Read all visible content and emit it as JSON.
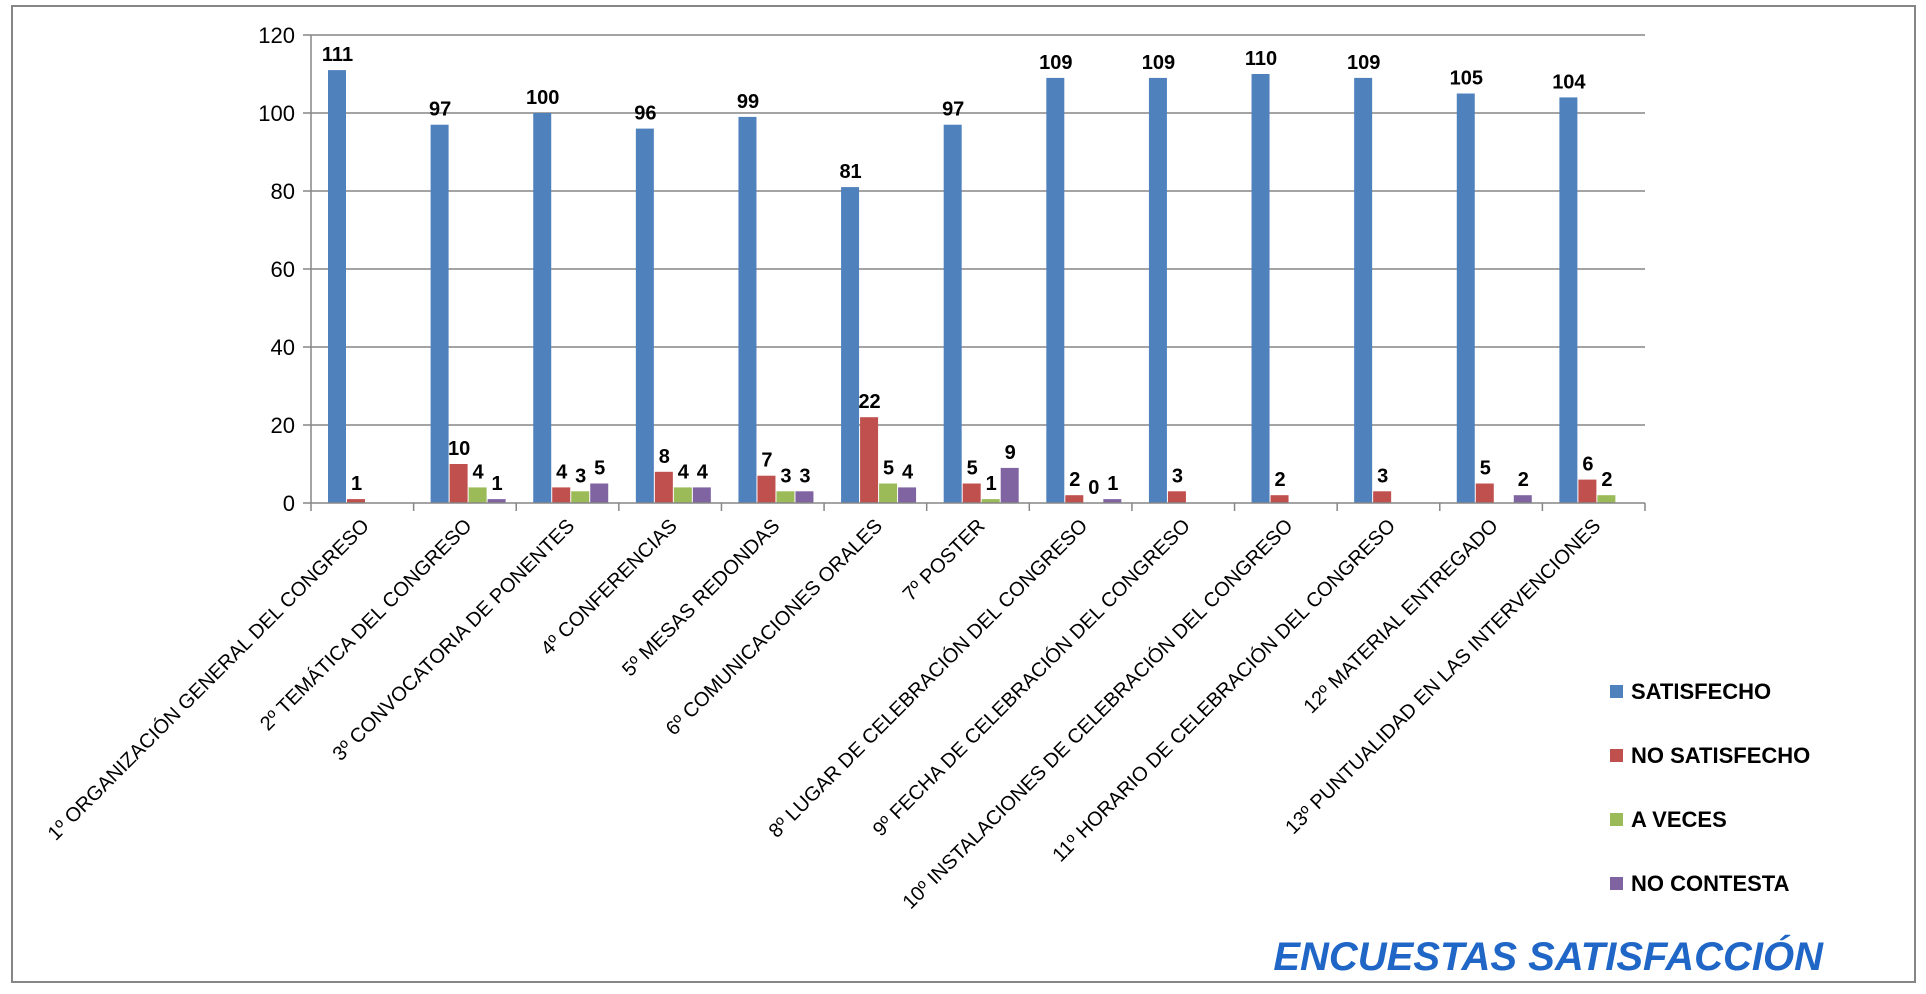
{
  "chart_data": {
    "type": "bar",
    "title": "ENCUESTAS  SATISFACCIÓN",
    "xlabel": "",
    "ylabel": "",
    "ylim": [
      0,
      120
    ],
    "yticks": [
      0,
      20,
      40,
      60,
      80,
      100,
      120
    ],
    "grid": true,
    "legend_position": "right",
    "categories": [
      "1º ORGANIZACIÓN GENERAL DEL CONGRESO",
      "2º TEMÁTICA DEL CONGRESO",
      "3º CONVOCATORIA DE PONENTES",
      "4º CONFERENCIAS",
      "5º MESAS REDONDAS",
      "6º COMUNICACIONES ORALES",
      "7º POSTER",
      "8º LUGAR DE CELEBRACIÓN DEL CONGRESO",
      "9º FECHA DE CELEBRACIÓN DEL CONGRESO",
      "10º INSTALACIONES DE CELEBRACIÓN DEL CONGRESO",
      "11º HORARIO DE CELEBRACIÓN DEL CONGRESO",
      "12º MATERIAL ENTREGADO",
      "13º PUNTUALIDAD EN LAS INTERVENCIONES"
    ],
    "series": [
      {
        "name": "SATISFECHO",
        "color": "#4f81bd",
        "values": [
          111,
          97,
          100,
          96,
          99,
          81,
          97,
          109,
          109,
          110,
          109,
          105,
          104
        ],
        "labels": [
          "111",
          "97",
          "100",
          "96",
          "99",
          "81",
          "97",
          "109",
          "109",
          "110",
          "109",
          "105",
          "104"
        ]
      },
      {
        "name": "NO SATISFECHO",
        "color": "#c0504d",
        "values": [
          1,
          10,
          4,
          8,
          7,
          22,
          5,
          2,
          3,
          2,
          3,
          5,
          6
        ],
        "labels": [
          "1",
          "10",
          "4",
          "8",
          "7",
          "22",
          "5",
          "2",
          "3",
          "2",
          "3",
          "5",
          "6"
        ]
      },
      {
        "name": "A VECES",
        "color": "#9bbb59",
        "values": [
          0,
          4,
          3,
          4,
          3,
          5,
          1,
          0,
          0,
          0,
          0,
          0,
          2
        ],
        "labels": [
          "",
          "4",
          "3",
          "4",
          "3",
          "5",
          "1",
          "0",
          "",
          "",
          "",
          "",
          "2"
        ]
      },
      {
        "name": "NO CONTESTA",
        "color": "#8064a2",
        "values": [
          0,
          1,
          5,
          4,
          3,
          4,
          9,
          1,
          0,
          0,
          0,
          2,
          0
        ],
        "labels": [
          "",
          "1",
          "5",
          "4",
          "3",
          "4",
          "9",
          "1",
          "",
          "",
          "",
          "2",
          ""
        ]
      }
    ]
  }
}
